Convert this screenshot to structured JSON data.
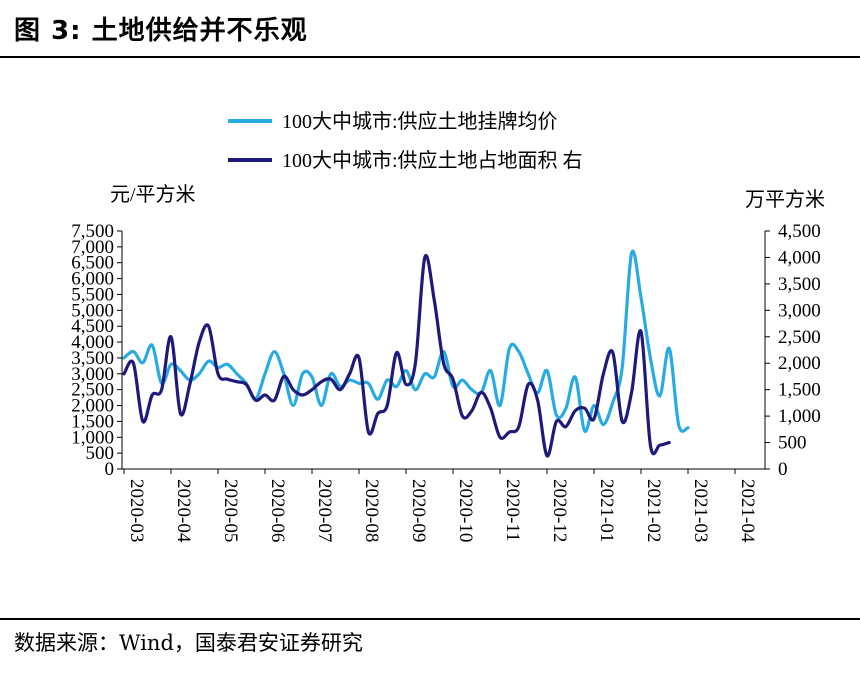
{
  "title": "图 3:  土地供给并不乐观",
  "source": "数据来源：Wind，国泰君安证券研究",
  "chart_data": {
    "type": "line",
    "left_axis_unit": "元/平方米",
    "right_axis_unit": "万平方米",
    "left_ticks": [
      "0",
      "500",
      "1,000",
      "1,500",
      "2,000",
      "2,500",
      "3,000",
      "3,500",
      "4,000",
      "4,500",
      "5,000",
      "5,500",
      "6,000",
      "6,500",
      "7,000",
      "7,500"
    ],
    "right_ticks": [
      "0",
      "500",
      "1,000",
      "1,500",
      "2,000",
      "2,500",
      "3,000",
      "3,500",
      "4,000",
      "4,500"
    ],
    "x_ticks": [
      "2020-03",
      "2020-04",
      "2020-05",
      "2020-06",
      "2020-07",
      "2020-08",
      "2020-09",
      "2020-10",
      "2020-11",
      "2020-12",
      "2021-01",
      "2021-02",
      "2021-03",
      "2021-04"
    ],
    "ylim_left": [
      0,
      7500
    ],
    "ylim_right": [
      0,
      4500
    ],
    "series": [
      {
        "name": "100大中城市:供应土地挂牌均价",
        "axis": "left",
        "color": "#29ABE2",
        "points": [
          [
            0.0,
            3500
          ],
          [
            0.2,
            3700
          ],
          [
            0.4,
            3350
          ],
          [
            0.6,
            3900
          ],
          [
            0.8,
            2700
          ],
          [
            1.0,
            3300
          ],
          [
            1.2,
            3100
          ],
          [
            1.4,
            2800
          ],
          [
            1.6,
            3000
          ],
          [
            1.8,
            3400
          ],
          [
            2.0,
            3200
          ],
          [
            2.2,
            3300
          ],
          [
            2.4,
            3000
          ],
          [
            2.6,
            2700
          ],
          [
            2.8,
            2200
          ],
          [
            3.0,
            3000
          ],
          [
            3.2,
            3700
          ],
          [
            3.4,
            3000
          ],
          [
            3.6,
            2000
          ],
          [
            3.8,
            3000
          ],
          [
            4.0,
            2900
          ],
          [
            4.2,
            2000
          ],
          [
            4.4,
            3000
          ],
          [
            4.6,
            2600
          ],
          [
            4.8,
            2800
          ],
          [
            5.0,
            2700
          ],
          [
            5.2,
            2700
          ],
          [
            5.4,
            2200
          ],
          [
            5.6,
            2800
          ],
          [
            5.8,
            2600
          ],
          [
            6.0,
            3100
          ],
          [
            6.2,
            2500
          ],
          [
            6.4,
            3000
          ],
          [
            6.6,
            2900
          ],
          [
            6.8,
            3700
          ],
          [
            7.0,
            2600
          ],
          [
            7.2,
            2800
          ],
          [
            7.4,
            2500
          ],
          [
            7.6,
            2400
          ],
          [
            7.8,
            3100
          ],
          [
            8.0,
            2000
          ],
          [
            8.2,
            3800
          ],
          [
            8.4,
            3700
          ],
          [
            8.6,
            3000
          ],
          [
            8.8,
            2400
          ],
          [
            9.0,
            3100
          ],
          [
            9.2,
            1700
          ],
          [
            9.4,
            1900
          ],
          [
            9.6,
            2900
          ],
          [
            9.8,
            1200
          ],
          [
            10.0,
            2000
          ],
          [
            10.2,
            1400
          ],
          [
            10.4,
            2100
          ],
          [
            10.6,
            3200
          ],
          [
            10.8,
            6800
          ],
          [
            11.0,
            5400
          ],
          [
            11.2,
            3500
          ],
          [
            11.4,
            2300
          ],
          [
            11.6,
            3800
          ],
          [
            11.8,
            1400
          ],
          [
            12.0,
            1300
          ]
        ]
      },
      {
        "name": "100大中城市:供应土地占地面积 右",
        "axis": "right",
        "color": "#1F1A7A",
        "points": [
          [
            0.0,
            1800
          ],
          [
            0.2,
            2000
          ],
          [
            0.4,
            900
          ],
          [
            0.6,
            1400
          ],
          [
            0.8,
            1500
          ],
          [
            1.0,
            2500
          ],
          [
            1.2,
            1050
          ],
          [
            1.4,
            1600
          ],
          [
            1.6,
            2400
          ],
          [
            1.8,
            2700
          ],
          [
            2.0,
            1800
          ],
          [
            2.2,
            1700
          ],
          [
            2.4,
            1650
          ],
          [
            2.6,
            1600
          ],
          [
            2.8,
            1300
          ],
          [
            3.0,
            1400
          ],
          [
            3.2,
            1300
          ],
          [
            3.4,
            1750
          ],
          [
            3.6,
            1500
          ],
          [
            3.8,
            1400
          ],
          [
            4.0,
            1500
          ],
          [
            4.2,
            1650
          ],
          [
            4.4,
            1700
          ],
          [
            4.6,
            1500
          ],
          [
            4.8,
            1800
          ],
          [
            5.0,
            2100
          ],
          [
            5.2,
            700
          ],
          [
            5.4,
            1050
          ],
          [
            5.6,
            1200
          ],
          [
            5.8,
            2200
          ],
          [
            6.0,
            1600
          ],
          [
            6.2,
            2000
          ],
          [
            6.4,
            4000
          ],
          [
            6.6,
            3200
          ],
          [
            6.8,
            2000
          ],
          [
            7.0,
            1700
          ],
          [
            7.2,
            1000
          ],
          [
            7.4,
            1100
          ],
          [
            7.6,
            1450
          ],
          [
            7.8,
            1150
          ],
          [
            8.0,
            600
          ],
          [
            8.2,
            700
          ],
          [
            8.4,
            800
          ],
          [
            8.6,
            1600
          ],
          [
            8.8,
            1300
          ],
          [
            9.0,
            250
          ],
          [
            9.2,
            900
          ],
          [
            9.4,
            800
          ],
          [
            9.6,
            1100
          ],
          [
            9.8,
            1150
          ],
          [
            10.0,
            950
          ],
          [
            10.2,
            1800
          ],
          [
            10.4,
            2200
          ],
          [
            10.6,
            900
          ],
          [
            10.8,
            1450
          ],
          [
            11.0,
            2600
          ],
          [
            11.2,
            450
          ],
          [
            11.4,
            450
          ],
          [
            11.6,
            500
          ]
        ]
      }
    ]
  }
}
